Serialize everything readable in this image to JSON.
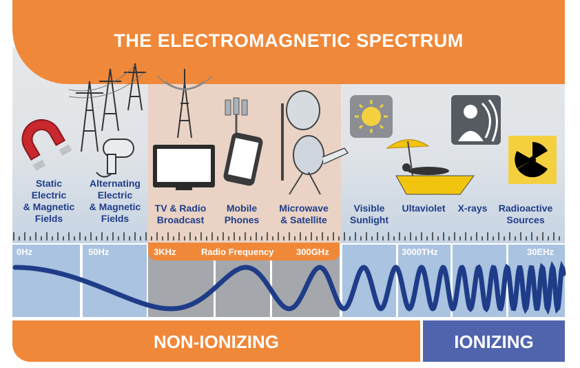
{
  "title": "THE ELECTROMAGNETIC SPECTRUM",
  "sources": [
    {
      "label": "Static\nElectric\n& Magnetic\nFields",
      "icon": "magnet-icon"
    },
    {
      "label": "Alternating\nElectric\n& Magnetic\nFields",
      "icon": "power-line-tower-icon"
    },
    {
      "label": "TV & Radio\nBroadcast",
      "icon": "tv-radio-tower-icon"
    },
    {
      "label": "Mobile\nPhones",
      "icon": "mobile-phone-icon"
    },
    {
      "label": "Microwave\n& Satellite",
      "icon": "satellite-dish-icon"
    },
    {
      "label": "Visible\nSunlight",
      "icon": "sun-icon"
    },
    {
      "label": "Ultaviolet",
      "icon": "sunbather-icon"
    },
    {
      "label": "X-rays",
      "icon": "xray-icon"
    },
    {
      "label": "Radioactive\nSources",
      "icon": "radiation-icon"
    }
  ],
  "frequencies": {
    "f0": "0Hz",
    "f1": "50Hz",
    "f2": "3KHz",
    "rf": "Radio Frequency",
    "f3": "300GHz",
    "f4": "3000THz",
    "f5": "30EHz"
  },
  "categories": {
    "non_ionizing": "NON-IONIZING",
    "ionizing": "IONIZING"
  },
  "colors": {
    "accent": "#f0883a",
    "label": "#1f3c88",
    "wave": "#1f3c88",
    "ionizing": "#4f64ad"
  }
}
